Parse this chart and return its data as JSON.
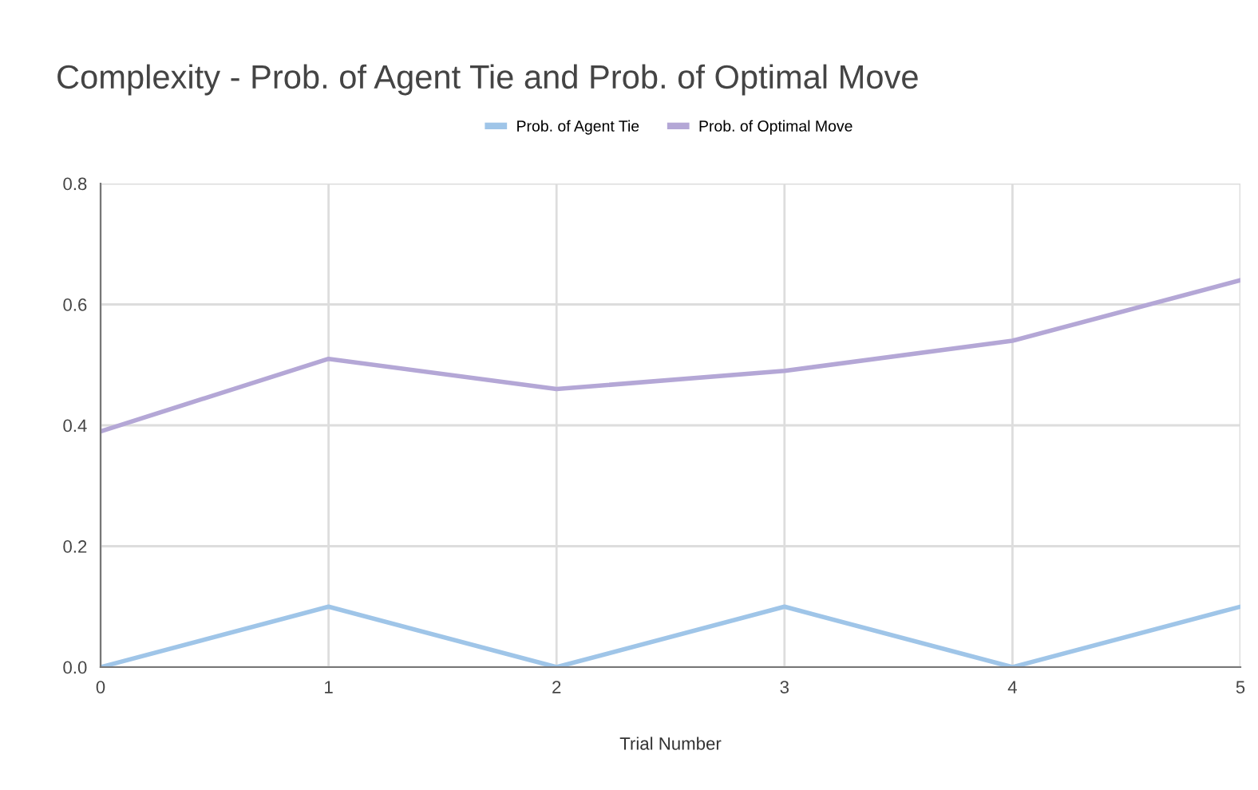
{
  "chart_data": {
    "type": "line",
    "title": "Complexity - Prob. of Agent Tie and Prob. of Optimal Move",
    "xlabel": "Trial Number",
    "x": [
      0,
      1,
      2,
      3,
      4,
      5
    ],
    "series": [
      {
        "name": "Prob. of Agent Tie",
        "color": "#9fc5e8",
        "values": [
          0.0,
          0.1,
          0.0,
          0.1,
          0.0,
          0.1
        ]
      },
      {
        "name": "Prob. of Optimal Move",
        "color": "#b4a7d6",
        "values": [
          0.39,
          0.51,
          0.46,
          0.49,
          0.54,
          0.64
        ]
      }
    ],
    "xlim": [
      0,
      5
    ],
    "xticks": [
      0,
      1,
      2,
      3,
      4,
      5
    ],
    "ylim": [
      0,
      0.8
    ],
    "yticks": [
      {
        "value": 0,
        "label": "0.0"
      },
      0.2,
      0.4,
      0.6,
      0.8
    ],
    "grid": true,
    "legend": "top",
    "line_style": "solid",
    "marker": "none"
  }
}
